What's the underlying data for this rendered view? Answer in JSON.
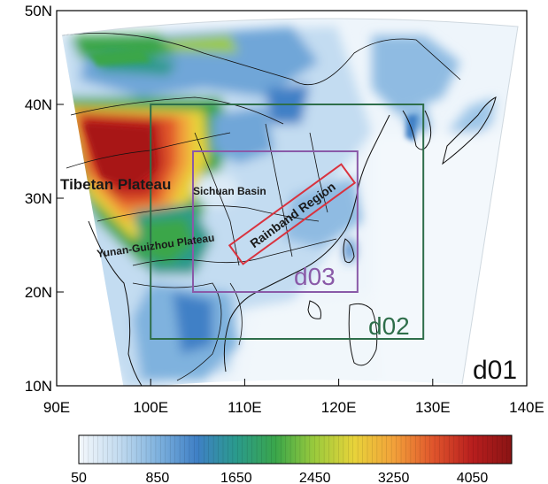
{
  "map": {
    "lon_ticks": [
      "90E",
      "100E",
      "110E",
      "120E",
      "130E",
      "140E"
    ],
    "lat_ticks": [
      "10N",
      "20N",
      "30N",
      "40N",
      "50N"
    ],
    "domains": [
      {
        "label": "d01",
        "color": "#111111",
        "lon": [
          90,
          140
        ],
        "lat": [
          10,
          50
        ]
      },
      {
        "label": "d02",
        "color": "#2e6e4a",
        "lon": [
          100,
          129
        ],
        "lat": [
          15,
          40
        ]
      },
      {
        "label": "d03",
        "color": "#8a5aa8",
        "lon": [
          104.5,
          122
        ],
        "lat": [
          20,
          35
        ]
      }
    ],
    "regions": {
      "tibetan_plateau": "Tibetan Plateau",
      "sichuan_basin": "Sichuan Basin",
      "yunnan_guizhou": "Yunan-Guizhou Plateau",
      "rainband": "Rainband Region"
    },
    "rainband_color": "#d9333f"
  },
  "colorbar": {
    "labels": [
      "50",
      "850",
      "1650",
      "2450",
      "3250",
      "4050"
    ],
    "range": [
      50,
      4450
    ],
    "colors": [
      "#f4f8fc",
      "#c4dcf0",
      "#7fb2de",
      "#3f80c6",
      "#2a9a8c",
      "#3aa64a",
      "#9ccb3c",
      "#e8d33a",
      "#f2a13a",
      "#e0552c",
      "#b81e1e",
      "#8a1414"
    ]
  }
}
